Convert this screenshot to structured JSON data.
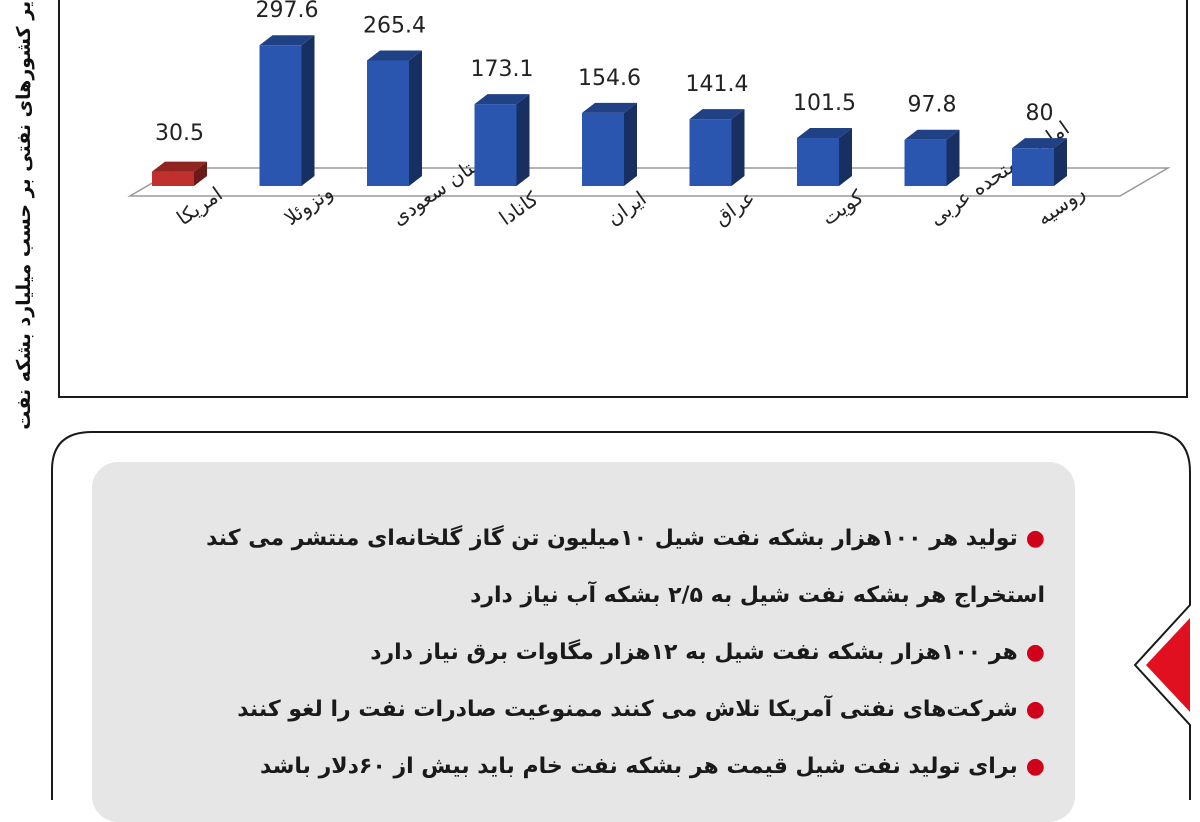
{
  "chart_data": {
    "type": "bar",
    "title": "",
    "xlabel": "",
    "ylabel": "ذخایر کشورهای نفتی بر حسب میلیارد بشکه نفت",
    "categories": [
      "امریکا",
      "ونزوئلا",
      "عربستان سعودی",
      "کانادا",
      "ایران",
      "عراق",
      "کویت",
      "امارات متحده عربی",
      "روسیه"
    ],
    "values": [
      30.5,
      297.6,
      265.4,
      173.1,
      154.6,
      141.4,
      101.5,
      97.8,
      80
    ],
    "value_labels": [
      "30.5",
      "297.6",
      "265.4",
      "173.1",
      "154.6",
      "141.4",
      "101.5",
      "97.8",
      "80"
    ],
    "bar_colors": [
      "#c0302c",
      "#2a56b0",
      "#2a56b0",
      "#2a56b0",
      "#2a56b0",
      "#2a56b0",
      "#2a56b0",
      "#2a56b0",
      "#2a56b0"
    ],
    "legend": "none",
    "grid": false
  },
  "notes": [
    {
      "text": "تولید هر ۱۰۰هزار بشکه نفت شیل ۱۰میلیون تن گاز گلخانه‌ای منتشر می کند",
      "bullet": true
    },
    {
      "text": "استخراج هر بشکه نفت شیل به ۲/۵ بشکه آب نیاز دارد",
      "bullet": false
    },
    {
      "text": "هر ۱۰۰هزار بشکه نفت شیل به ۱۲هزار مگاوات برق نیاز دارد",
      "bullet": true
    },
    {
      "text": "شرکت‌های نفتی آمریکا تلاش می کنند ممنوعیت صادرات نفت را لغو کنند",
      "bullet": true
    },
    {
      "text": "برای تولید نفت شیل قیمت هر بشکه نفت خام باید بیش از ۶۰دلار باشد",
      "bullet": true
    }
  ],
  "colors": {
    "accent": "#d0021b",
    "panel": "#e6e6e6",
    "bar": "#2a56b0",
    "highlight_bar": "#c0302c"
  }
}
